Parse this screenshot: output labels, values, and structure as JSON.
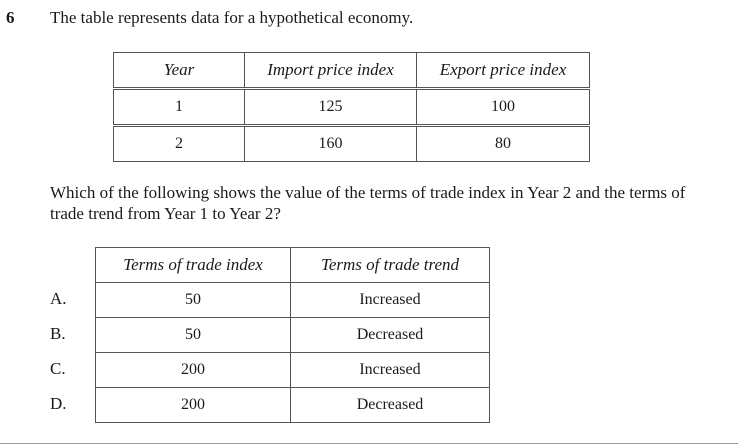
{
  "question": {
    "number": "6",
    "stem": "The table represents data for a hypothetical economy.",
    "prompt": "Which of the following shows the value of the terms of trade index in Year 2 and the terms of trade trend from Year 1 to Year 2?"
  },
  "data_table": {
    "headers": [
      "Year",
      "Import price index",
      "Export price index"
    ],
    "rows": [
      [
        "1",
        "125",
        "100"
      ],
      [
        "2",
        "160",
        "80"
      ]
    ]
  },
  "options_table": {
    "headers": [
      "Terms of trade index",
      "Terms of trade trend"
    ],
    "options": [
      {
        "letter": "A.",
        "index": "50",
        "trend": "Increased"
      },
      {
        "letter": "B.",
        "index": "50",
        "trend": "Decreased"
      },
      {
        "letter": "C.",
        "index": "200",
        "trend": "Increased"
      },
      {
        "letter": "D.",
        "index": "200",
        "trend": "Decreased"
      }
    ]
  }
}
